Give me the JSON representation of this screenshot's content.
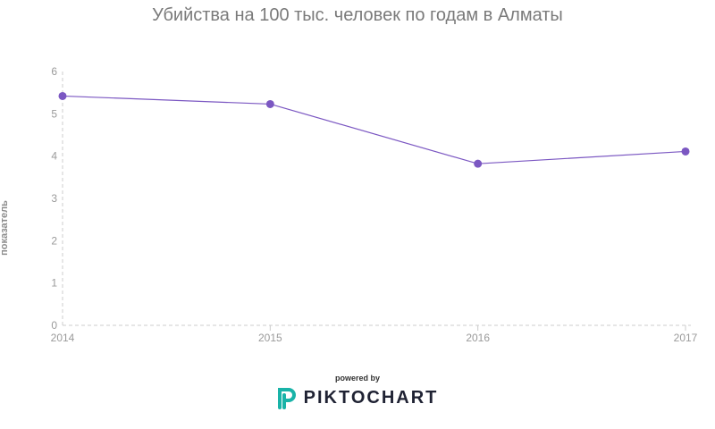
{
  "chart_data": {
    "type": "line",
    "title": "Убийства на 100 тыс. человек по годам в Алматы",
    "xlabel": "",
    "ylabel": "показатель",
    "categories": [
      "2014",
      "2015",
      "2016",
      "2017"
    ],
    "series": [
      {
        "values": [
          5.42,
          5.23,
          3.82,
          4.11
        ]
      }
    ],
    "ylim": [
      0,
      6
    ],
    "yticks": [
      "0",
      "1",
      "2",
      "3",
      "4",
      "5",
      "6"
    ],
    "grid": false,
    "colors": {
      "line": "#7b57c2",
      "axis": "#cccccc"
    }
  },
  "footer": {
    "powered_by": "powered by",
    "brand": "PIKTOCHART",
    "brand_color": "#19b3a8"
  }
}
